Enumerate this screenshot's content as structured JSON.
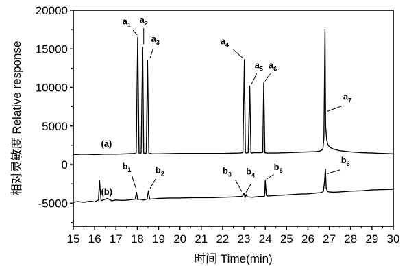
{
  "chart_data": {
    "type": "line",
    "xlabel": "时间 Time(min)",
    "ylabel": "相对灵敏度 Relative response",
    "xlim": [
      15,
      30
    ],
    "ylim": [
      -8000,
      20000
    ],
    "x_ticks": [
      15,
      16,
      17,
      18,
      19,
      20,
      21,
      22,
      23,
      24,
      25,
      26,
      27,
      28,
      29,
      30
    ],
    "y_ticks": [
      -5000,
      0,
      5000,
      10000,
      15000,
      20000
    ],
    "grid": false,
    "series": [
      {
        "name": "(a)",
        "label_at": [
          16.3,
          2300
        ],
        "x": [
          15.0,
          15.5,
          16.0,
          16.5,
          17.0,
          17.5,
          17.9,
          17.95,
          18.02,
          18.08,
          18.12,
          18.18,
          18.25,
          18.3,
          18.36,
          18.42,
          18.48,
          18.54,
          18.6,
          18.7,
          19.0,
          20.0,
          21.0,
          22.0,
          22.8,
          22.95,
          23.02,
          23.07,
          23.12,
          23.2,
          23.27,
          23.33,
          23.38,
          23.45,
          23.8,
          23.88,
          23.93,
          23.98,
          24.05,
          24.5,
          25.0,
          25.5,
          26.0,
          26.4,
          26.6,
          26.7,
          26.75,
          26.8,
          26.83,
          26.88,
          26.95,
          27.05,
          27.2,
          27.5,
          28.0,
          28.5,
          29.0,
          29.5,
          30.0
        ],
        "y": [
          1300,
          1350,
          1300,
          1350,
          1350,
          1400,
          1450,
          1500,
          16500,
          1500,
          1500,
          1500,
          15200,
          1500,
          1450,
          1500,
          13500,
          1450,
          1450,
          1400,
          1400,
          1450,
          1450,
          1450,
          1500,
          1550,
          13600,
          1550,
          1500,
          1550,
          10200,
          1550,
          1500,
          1550,
          1550,
          1600,
          10600,
          1550,
          1500,
          1500,
          1550,
          1600,
          1650,
          1700,
          1800,
          2000,
          3500,
          17500,
          5000,
          3200,
          2500,
          2200,
          2000,
          1800,
          1650,
          1550,
          1500,
          1450,
          1400
        ]
      },
      {
        "name": "(b)",
        "label_at": [
          16.3,
          -3900
        ],
        "x": [
          15.0,
          15.2,
          15.5,
          15.8,
          16.0,
          16.1,
          16.18,
          16.23,
          16.3,
          16.45,
          16.6,
          16.8,
          17.0,
          17.3,
          17.6,
          17.9,
          17.96,
          18.02,
          18.1,
          18.3,
          18.46,
          18.52,
          18.58,
          18.8,
          19.0,
          19.5,
          20.0,
          20.5,
          21.0,
          21.5,
          22.0,
          22.5,
          22.8,
          22.9,
          22.95,
          23.0,
          23.05,
          23.1,
          23.15,
          23.2,
          23.4,
          23.7,
          23.9,
          23.97,
          24.0,
          24.05,
          24.12,
          24.3,
          24.6,
          25.0,
          25.5,
          26.0,
          26.4,
          26.6,
          26.72,
          26.77,
          26.82,
          26.86,
          26.92,
          27.0,
          27.2,
          27.5,
          28.0,
          28.5,
          29.0,
          29.5,
          30.0
        ],
        "y": [
          -4900,
          -4800,
          -4900,
          -4750,
          -4850,
          -4700,
          -4600,
          -2100,
          -4700,
          -4550,
          -4400,
          -4700,
          -4600,
          -4650,
          -4600,
          -4500,
          -3600,
          -4550,
          -4500,
          -4600,
          -4500,
          -3400,
          -4500,
          -4450,
          -4400,
          -4350,
          -4350,
          -4300,
          -4300,
          -4300,
          -4250,
          -4200,
          -4150,
          -4150,
          -4050,
          -3700,
          -4300,
          -3900,
          -4200,
          -4200,
          -4250,
          -4150,
          -4150,
          -4050,
          -2100,
          -4000,
          -4100,
          -4050,
          -4000,
          -3950,
          -3850,
          -3800,
          -3700,
          -3650,
          -3500,
          -2500,
          -600,
          -3100,
          -3500,
          -3550,
          -3600,
          -3550,
          -3450,
          -3400,
          -3300,
          -3250,
          -3200
        ]
      }
    ],
    "annotations": [
      {
        "text": "a",
        "sub": "1",
        "tx": 17.3,
        "ty": 18200,
        "lx1": 17.8,
        "ly1": 17400,
        "lx2": 18.0,
        "ly2": 16800
      },
      {
        "text": "a",
        "sub": "2",
        "tx": 18.1,
        "ty": 18400,
        "lx1": 18.3,
        "ly1": 17700,
        "lx2": 18.3,
        "ly2": 15600
      },
      {
        "text": "a",
        "sub": "3",
        "tx": 18.65,
        "ty": 15900,
        "lx1": 18.75,
        "ly1": 15100,
        "lx2": 18.6,
        "ly2": 13800
      },
      {
        "text": "a",
        "sub": "4",
        "tx": 21.9,
        "ty": 15600,
        "lx1": 22.5,
        "ly1": 14900,
        "lx2": 22.95,
        "ly2": 13800
      },
      {
        "text": "a",
        "sub": "5",
        "tx": 23.5,
        "ty": 12500,
        "lx1": 23.6,
        "ly1": 11800,
        "lx2": 23.35,
        "ly2": 10400
      },
      {
        "text": "a",
        "sub": "6",
        "tx": 24.15,
        "ty": 12500,
        "lx1": 24.25,
        "ly1": 11800,
        "lx2": 23.98,
        "ly2": 10800
      },
      {
        "text": "a",
        "sub": "7",
        "tx": 27.65,
        "ty": 8400,
        "lx1": 27.6,
        "ly1": 7600,
        "lx2": 26.9,
        "ly2": 6900
      },
      {
        "text": "b",
        "sub": "1",
        "tx": 17.3,
        "ty": -600,
        "lx1": 17.75,
        "ly1": -1500,
        "lx2": 17.95,
        "ly2": -3200
      },
      {
        "text": "b",
        "sub": "2",
        "tx": 18.85,
        "ty": -1100,
        "lx1": 18.85,
        "ly1": -1900,
        "lx2": 18.6,
        "ly2": -3100
      },
      {
        "text": "b",
        "sub": "3",
        "tx": 22.0,
        "ty": -1200,
        "lx1": 22.6,
        "ly1": -2000,
        "lx2": 22.9,
        "ly2": -3500
      },
      {
        "text": "b",
        "sub": "4",
        "tx": 23.1,
        "ty": -1300,
        "lx1": 23.35,
        "ly1": -2400,
        "lx2": 23.1,
        "ly2": -3600
      },
      {
        "text": "b",
        "sub": "5",
        "tx": 24.4,
        "ty": -700,
        "lx1": 24.4,
        "ly1": -1300,
        "lx2": 24.05,
        "ly2": -1900
      },
      {
        "text": "b",
        "sub": "6",
        "tx": 27.55,
        "ty": 200,
        "lx1": 27.5,
        "ly1": -700,
        "lx2": 26.9,
        "ly2": -1200
      }
    ]
  }
}
